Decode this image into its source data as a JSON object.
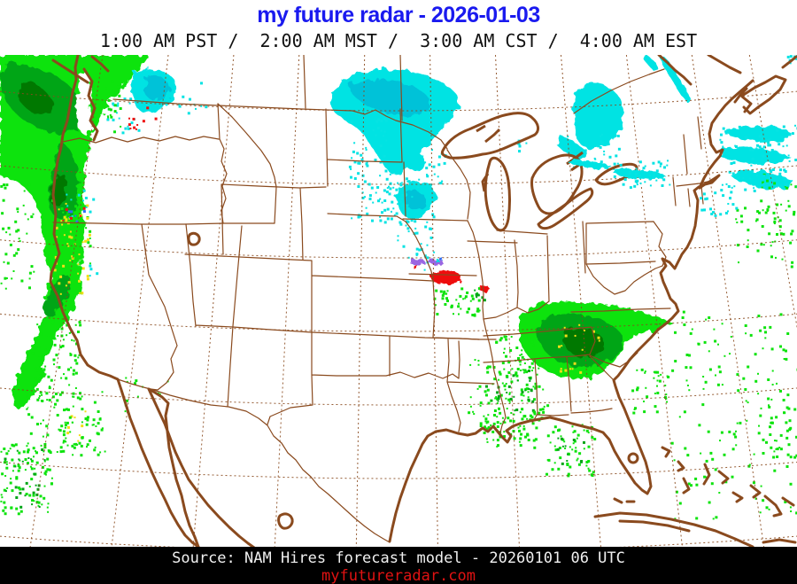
{
  "header": {
    "title": "my future radar - 2026-01-03",
    "time_line": "1:00 AM PST /  2:00 AM MST /  3:00 AM CST /  4:00 AM EST"
  },
  "footer": {
    "source": "Source: NAM Hires forecast model - 20260101 06 UTC",
    "website": "myfutureradar.com"
  },
  "map": {
    "kind": "precipitation-forecast-radar",
    "region": "contiguous-united-states",
    "colors": {
      "title_blue": "#1a1aef",
      "border_brown": "#8a4a1e",
      "footer_bg": "#000000",
      "footer_text": "#f0f0f0",
      "website_red": "#e01212",
      "rain_light": "#0de30d",
      "rain_moderate": "#00a516",
      "rain_heavy": "#047800",
      "rain_intense_yellow": "#f2de17",
      "rain_extreme_red": "#ee1111",
      "snow_cyan": "#06e3e3",
      "snow_cyan_dark": "#00c2d8",
      "mix_purple": "#9a66e2",
      "mix_blue": "#2f6df2"
    }
  }
}
